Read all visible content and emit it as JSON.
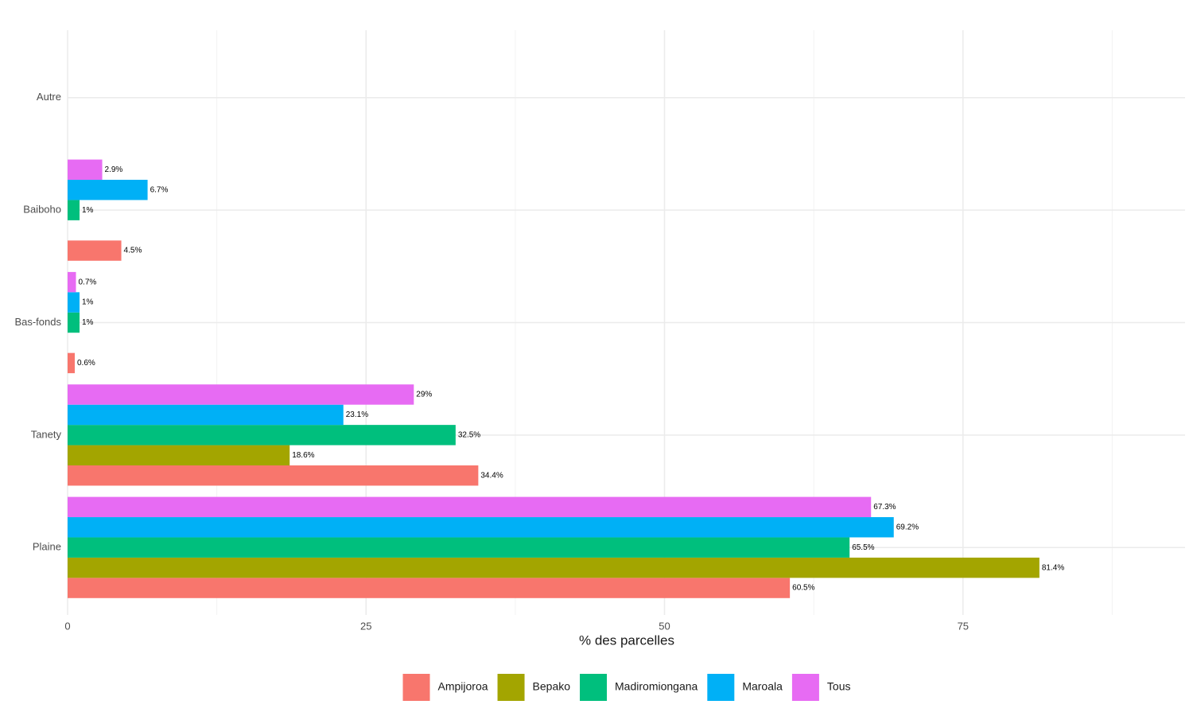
{
  "chart_data": {
    "type": "bar",
    "orientation": "horizontal",
    "x_label": "% des parcelles",
    "categories": [
      "Plaine",
      "Tanety",
      "Bas-fonds",
      "Baiboho",
      "Autre"
    ],
    "series": [
      {
        "name": "Ampijoroa",
        "color": "#F8766D",
        "values": [
          60.5,
          34.4,
          0.6,
          4.5,
          null
        ],
        "value_labels": [
          "60.5%",
          "34.4%",
          "0.6%",
          "4.5%",
          null
        ]
      },
      {
        "name": "Bepako",
        "color": "#A3A500",
        "values": [
          81.4,
          18.6,
          null,
          null,
          null
        ],
        "value_labels": [
          "81.4%",
          "18.6%",
          null,
          null,
          null
        ]
      },
      {
        "name": "Madiromiongana",
        "color": "#00BF7D",
        "values": [
          65.5,
          32.5,
          1,
          1,
          null
        ],
        "value_labels": [
          "65.5%",
          "32.5%",
          "1%",
          "1%",
          null
        ]
      },
      {
        "name": "Maroala",
        "color": "#00B0F6",
        "values": [
          69.2,
          23.1,
          1,
          6.7,
          null
        ],
        "value_labels": [
          "69.2%",
          "23.1%",
          "1%",
          "6.7%",
          null
        ]
      },
      {
        "name": "Tous",
        "color": "#E76BF3",
        "values": [
          67.3,
          29,
          0.7,
          2.9,
          null
        ],
        "value_labels": [
          "67.3%",
          "29%",
          "0.7%",
          "2.9%",
          null
        ]
      }
    ],
    "xlim": [
      0,
      93.6
    ],
    "xticks": [
      0,
      25,
      50,
      75
    ],
    "grid": true,
    "legend": "bottom"
  }
}
